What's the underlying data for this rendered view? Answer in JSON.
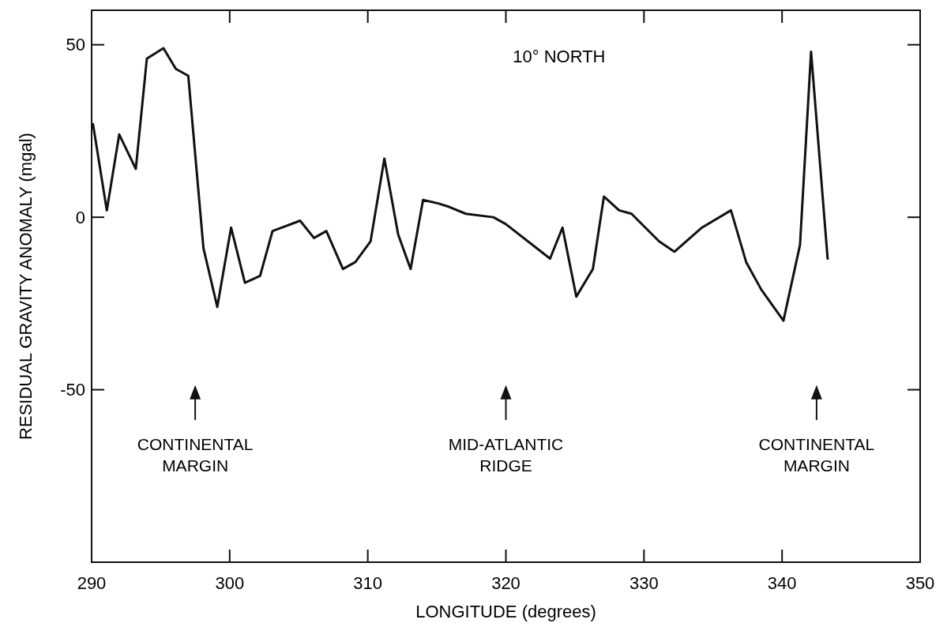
{
  "chart_data": {
    "type": "line",
    "title": "10° NORTH",
    "xlabel": "LONGITUDE (degrees)",
    "ylabel": "RESIDUAL GRAVITY ANOMALY (mgal)",
    "x": [
      290.1,
      291.1,
      292.0,
      293.2,
      294.0,
      295.2,
      296.1,
      297.0,
      298.1,
      299.1,
      300.1,
      301.1,
      302.2,
      303.1,
      305.1,
      306.1,
      307.0,
      308.2,
      309.1,
      310.2,
      311.2,
      312.2,
      313.1,
      314.0,
      315.1,
      315.9,
      317.1,
      319.1,
      320.0,
      323.2,
      324.1,
      325.1,
      326.3,
      327.1,
      328.2,
      329.1,
      331.1,
      332.2,
      334.2,
      336.3,
      337.4,
      338.5,
      340.1,
      341.3,
      342.1,
      343.3
    ],
    "series": [
      {
        "color": "#111111",
        "values": [
          27,
          2,
          24,
          14,
          46,
          49,
          43,
          41,
          -9,
          -26,
          -3,
          -19,
          -17,
          -4,
          -1,
          -6,
          -4,
          -15,
          -13,
          -7,
          17,
          -5,
          -15,
          5,
          4,
          3,
          1,
          0,
          -2,
          -12,
          -3,
          -23,
          -15,
          6,
          2,
          1,
          -7,
          -10,
          -3,
          2,
          -13,
          -21,
          -30,
          -8,
          48,
          -12
        ]
      }
    ],
    "xlim": [
      290,
      350
    ],
    "xticks": [
      290,
      300,
      310,
      320,
      330,
      340,
      350
    ],
    "ylim": [
      -100,
      60
    ],
    "yticks": [
      50,
      0,
      -50
    ],
    "grid": false,
    "marker": "none",
    "line_style": "solid",
    "annotations": [
      "CONTINENTAL\nMARGIN",
      "MID-ATLANTIC\nRIDGE",
      "CONTINENTAL\nMARGIN"
    ]
  }
}
